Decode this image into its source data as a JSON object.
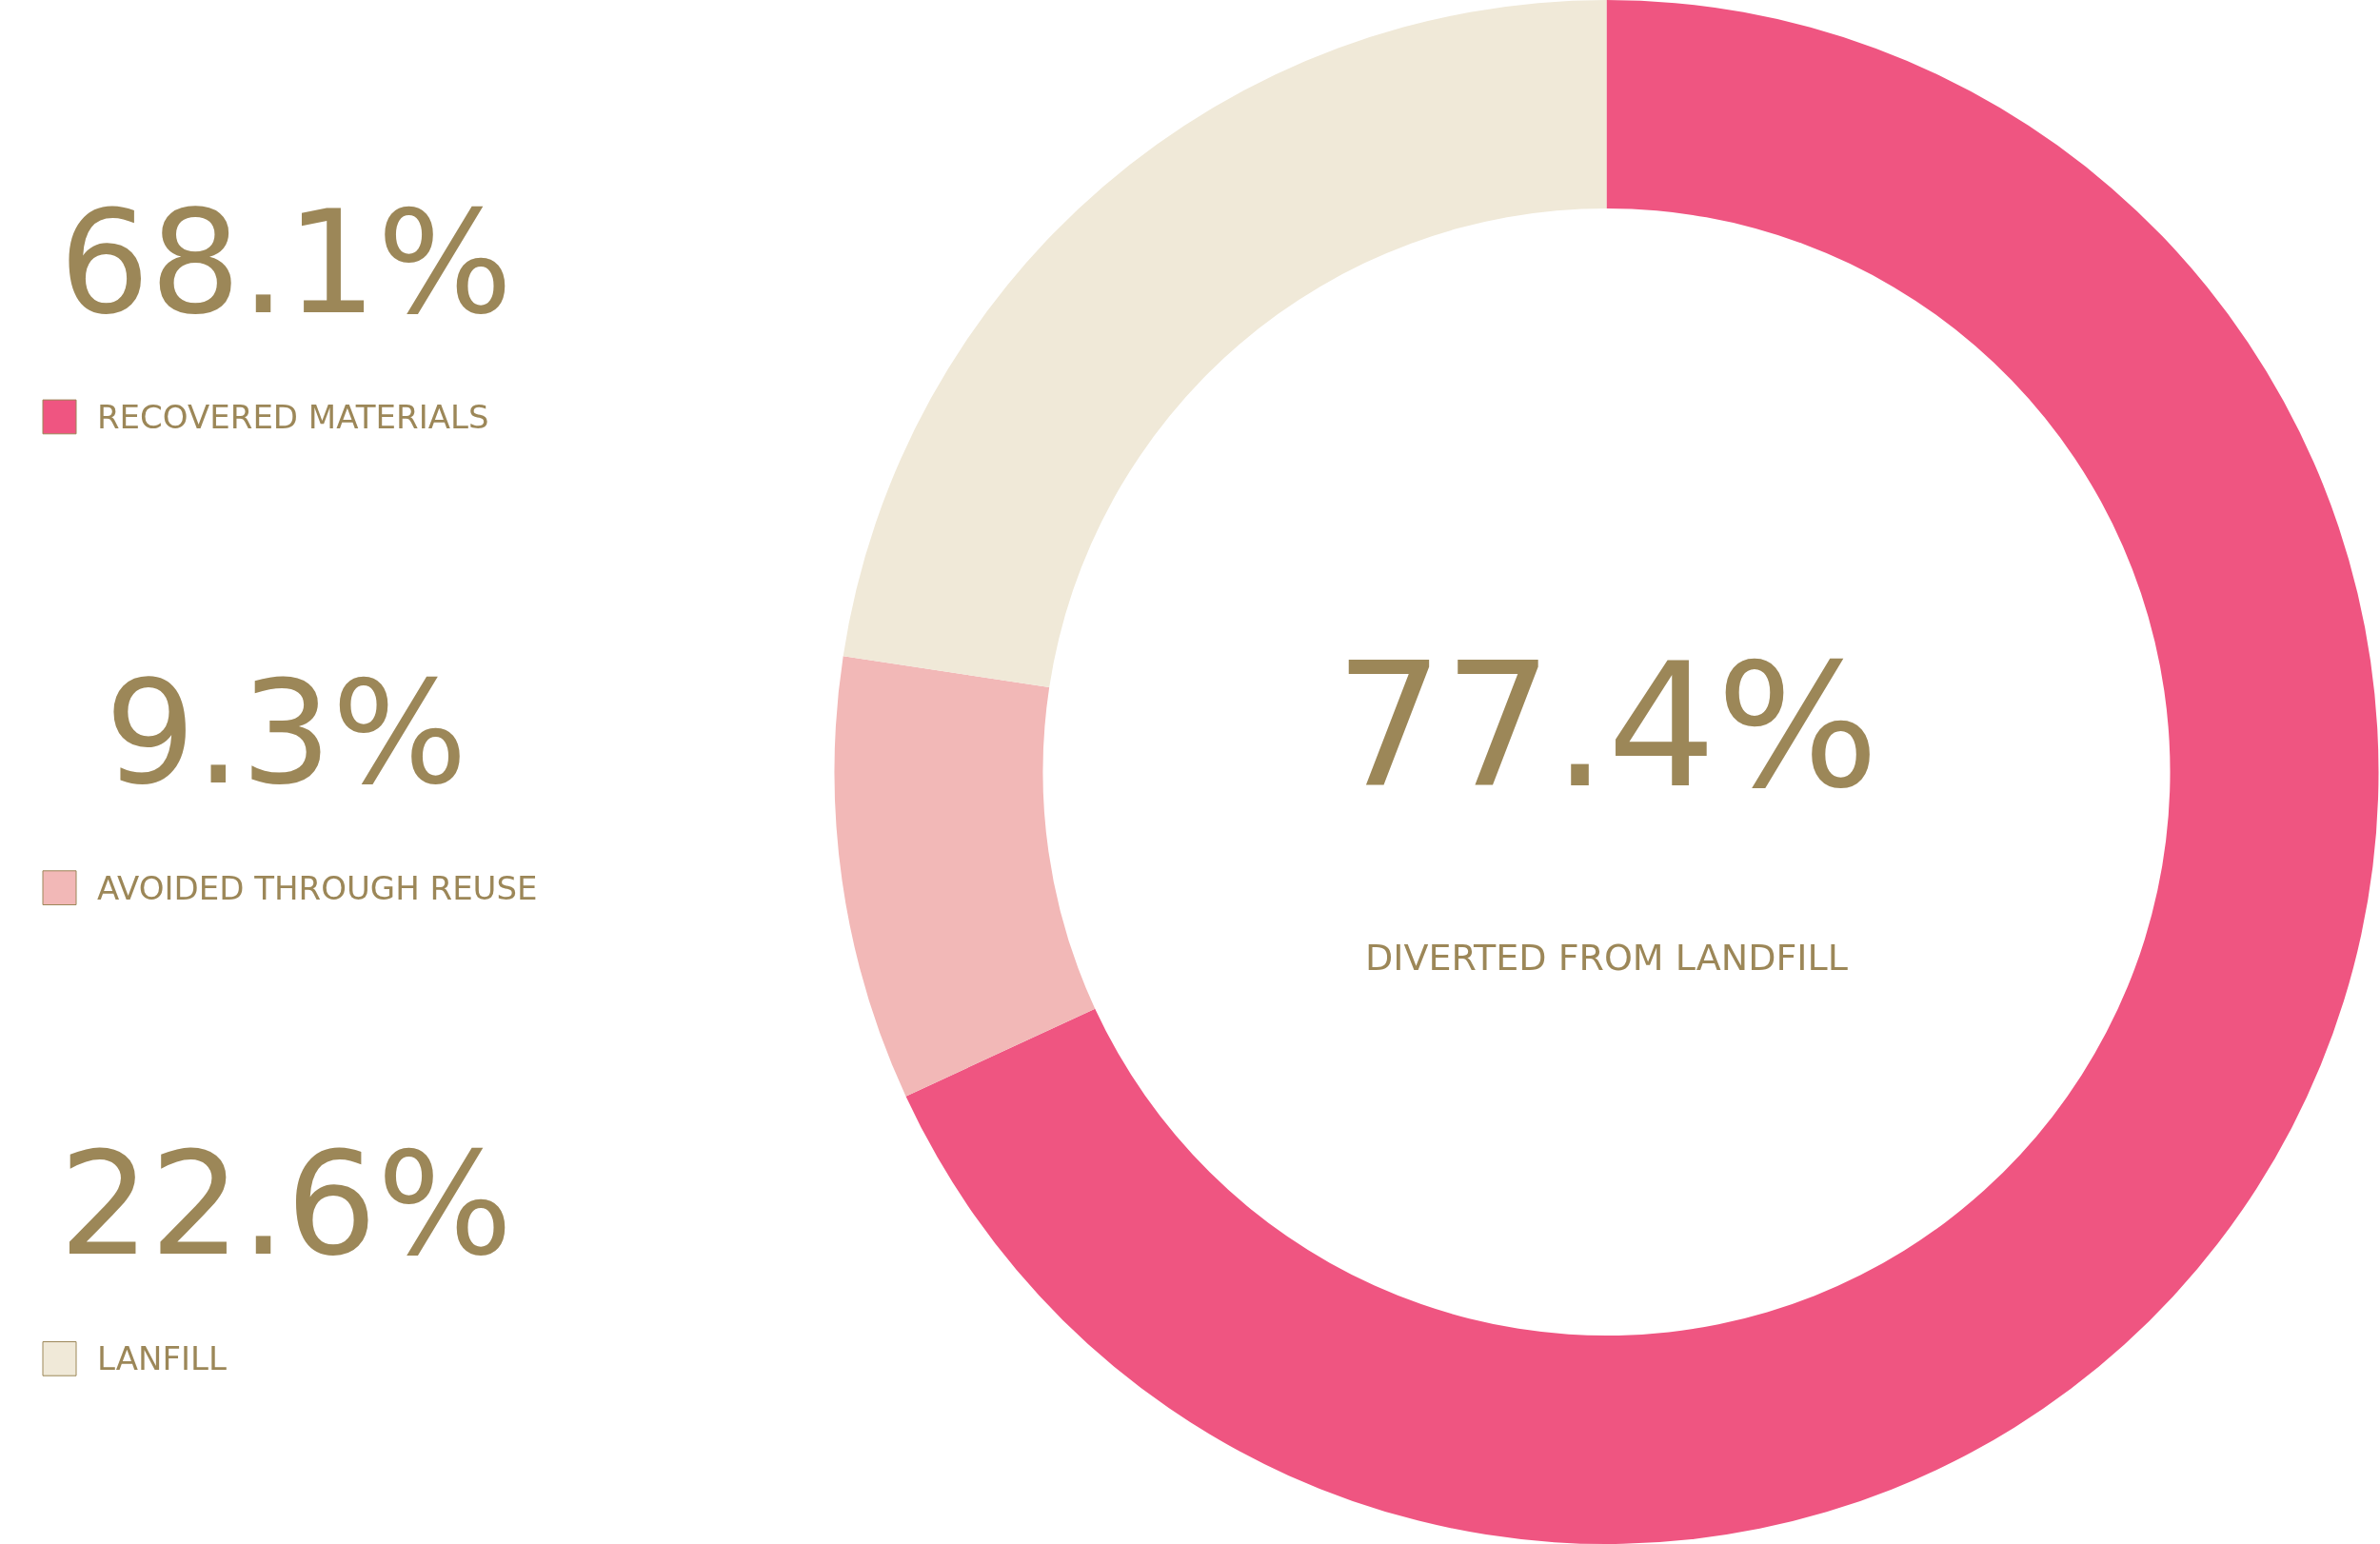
{
  "chart_data": {
    "type": "donut",
    "categories": [
      "RECOVERED MATERIALS",
      "AVOIDED THROUGH REUSE",
      "LANFILL"
    ],
    "values": [
      68.1,
      9.3,
      22.6
    ],
    "value_labels": [
      "68.1%",
      "9.3%",
      "22.6%"
    ],
    "colors": [
      "#ef5581",
      "#f2b8b7",
      "#f0e9d8"
    ],
    "annotations": [
      "77.4%",
      "DIVERTED FROM LANDFILL"
    ],
    "legend": "left"
  }
}
